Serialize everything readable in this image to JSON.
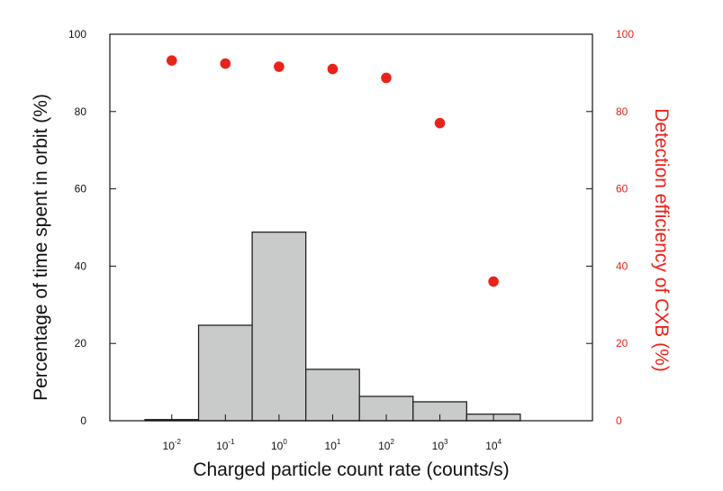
{
  "colors": {
    "bar_fill": "#c9cbca",
    "bar_stroke": "#222222",
    "dots": "#e8231a",
    "right_axis": "#e8231a",
    "frame": "#111111"
  },
  "chart_data": {
    "type": "bar",
    "xlabel": "Charged particle count rate (counts/s)",
    "ylabel_left": "Percentage of time spent in orbit (%)",
    "ylabel_right": "Detection efficiency of CXB (%)",
    "x_scale": "log",
    "x_ticks": [
      {
        "base": "10",
        "exp": "-2",
        "value": 0.01
      },
      {
        "base": "10",
        "exp": "-1",
        "value": 0.1
      },
      {
        "base": "10",
        "exp": "0",
        "value": 1
      },
      {
        "base": "10",
        "exp": "1",
        "value": 10
      },
      {
        "base": "10",
        "exp": "2",
        "value": 100
      },
      {
        "base": "10",
        "exp": "3",
        "value": 1000
      },
      {
        "base": "10",
        "exp": "4",
        "value": 10000
      }
    ],
    "xlim": [
      0.0007,
      700000
    ],
    "ylim_left": [
      0,
      100
    ],
    "ylim_right": [
      0,
      100
    ],
    "y_ticks_left": [
      "0",
      "20",
      "40",
      "60",
      "80",
      "100"
    ],
    "y_ticks_right": [
      "0",
      "20",
      "40",
      "60",
      "80",
      "100"
    ],
    "histogram": {
      "name": "Percentage of time spent in orbit",
      "bin_edges": [
        0.00316,
        0.0316,
        0.316,
        3.16,
        31.6,
        316,
        3160,
        31600
      ],
      "values": [
        0.3,
        24.7,
        48.8,
        13.3,
        6.3,
        4.9,
        1.7
      ]
    },
    "points": {
      "name": "Detection efficiency of CXB",
      "x": [
        0.01,
        0.1,
        1,
        10,
        100,
        1000,
        10000
      ],
      "y": [
        93.2,
        92.4,
        91.6,
        91.0,
        88.7,
        77.0,
        36.0
      ]
    },
    "grid": false
  }
}
